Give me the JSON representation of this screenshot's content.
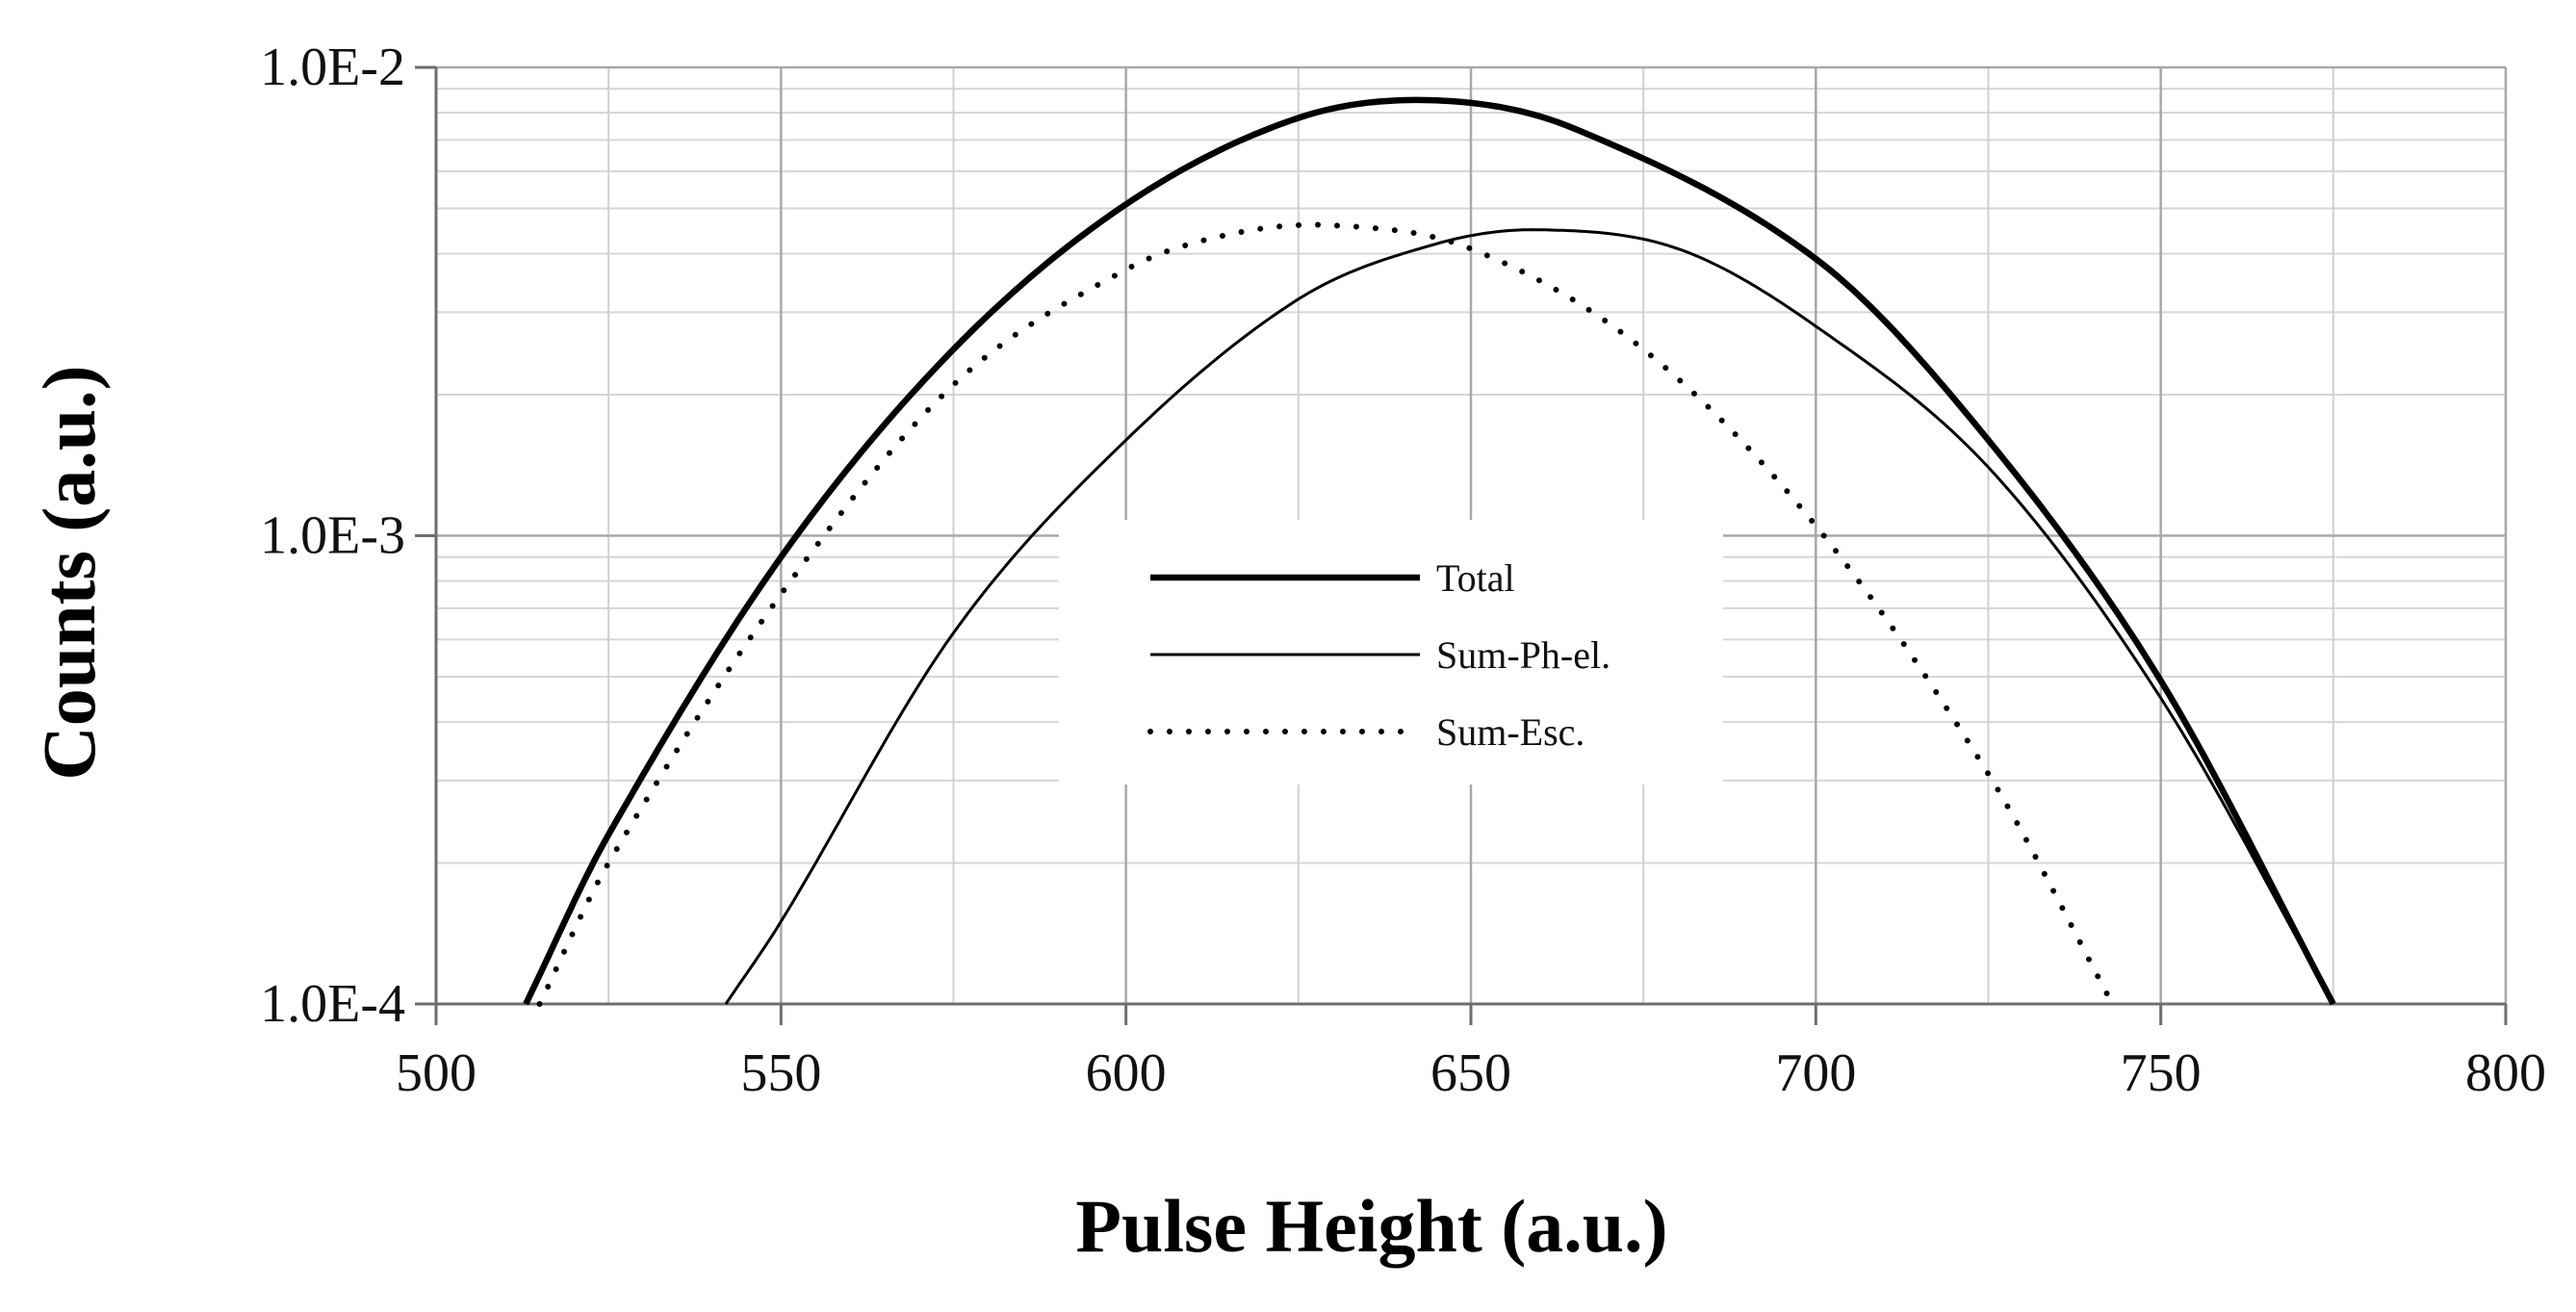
{
  "chart_data": {
    "type": "line",
    "title": "",
    "xlabel": "Pulse Height (a.u.)",
    "ylabel": "Counts (a.u.)",
    "xlim": [
      500,
      800
    ],
    "ylim": [
      0.0001,
      0.01
    ],
    "y_scale": "log",
    "x_ticks": [
      500,
      550,
      600,
      650,
      700,
      750,
      800
    ],
    "x_tick_labels": [
      "500",
      "550",
      "600",
      "650",
      "700",
      "750",
      "800"
    ],
    "y_ticks": [
      0.0001,
      0.001,
      0.01
    ],
    "y_tick_labels": [
      "1.0E-4",
      "1.0E-3",
      "1.0E-2"
    ],
    "grid": true,
    "legend_position": "center",
    "series": [
      {
        "name": "Total",
        "style": "thick-solid",
        "x": [
          513,
          525,
          550,
          575,
          600,
          625,
          645,
          665,
          700,
          725,
          750,
          775
        ],
        "y": [
          0.0001,
          0.00023,
          0.0009,
          0.0025,
          0.0051,
          0.0078,
          0.0085,
          0.0074,
          0.0039,
          0.0016,
          0.00049,
          0.0001
        ]
      },
      {
        "name": "Sum-Ph-el.",
        "style": "thin-solid",
        "x": [
          542,
          550,
          575,
          600,
          625,
          645,
          660,
          680,
          700,
          725,
          750,
          775
        ],
        "y": [
          0.0001,
          0.00015,
          0.00062,
          0.0016,
          0.0032,
          0.0042,
          0.0045,
          0.0041,
          0.0028,
          0.0014,
          0.00045,
          0.0001
        ]
      },
      {
        "name": "Sum-Esc.",
        "style": "dotted",
        "x": [
          515,
          525,
          550,
          575,
          600,
          615,
          630,
          650,
          675,
          700,
          725,
          743
        ],
        "y": [
          0.0001,
          0.0002,
          0.00075,
          0.0021,
          0.0037,
          0.0044,
          0.0046,
          0.0041,
          0.0025,
          0.00105,
          0.00031,
          0.0001
        ]
      }
    ]
  }
}
